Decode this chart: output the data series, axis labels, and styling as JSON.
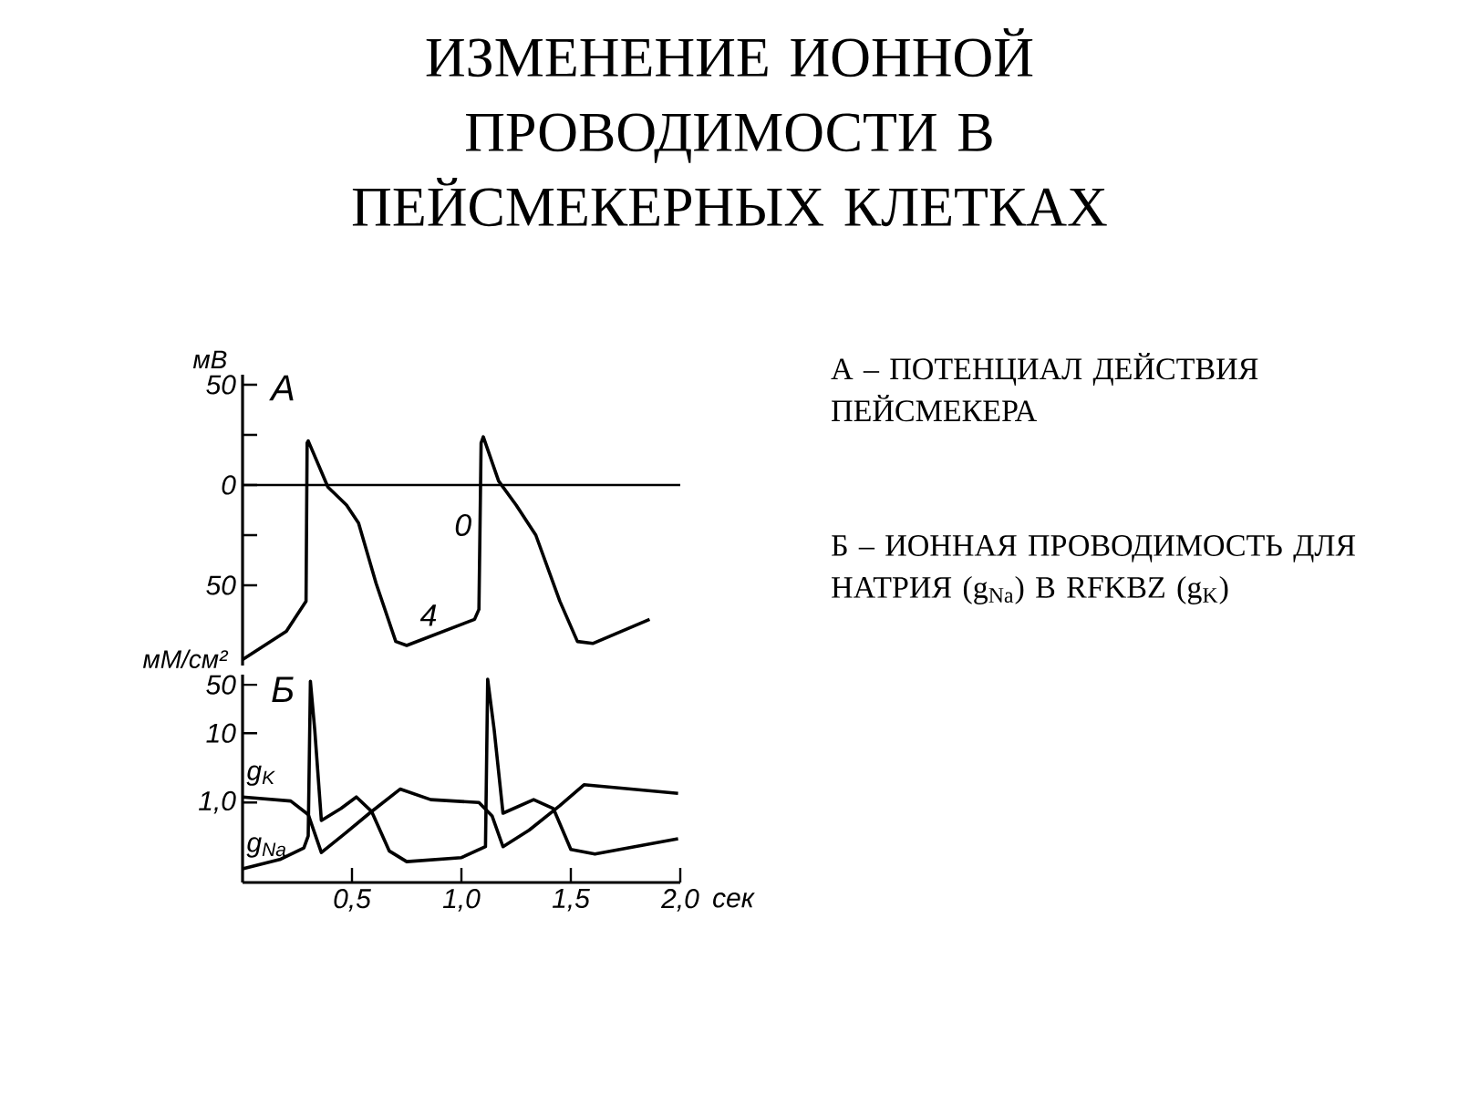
{
  "chart_data": [
    {
      "type": "line",
      "title": "ИЗМЕНЕНИЕ ИОННОЙ ПРОВОДИМОСТИ В ПЕЙСМЕКЕРНЫХ КЛЕТКАХ",
      "ylabel": "мВ",
      "xlim": [
        0,
        2.0
      ],
      "ylim": [
        -90,
        55
      ],
      "yticks": [
        50,
        {
          "value": 25,
          "label": null
        },
        0,
        {
          "value": -25,
          "label": null
        },
        {
          "value": -50,
          "label": "50"
        }
      ],
      "tick_labels": "y",
      "ref_lines": [
        {
          "axis": "y",
          "value": 0,
          "color": "#000000"
        }
      ],
      "annotations": [
        "А",
        {
          "text": "0",
          "x": 1.09,
          "y": -20
        },
        {
          "text": "4",
          "x": 0.85,
          "y": -75
        },
        "А – ПОТЕНЦИАЛ ДЕЙСТВИЯ ПЕЙСМЕКЕРА"
      ],
      "series": [
        {
          "color": "#000000",
          "x": [
            0.0,
            0.2,
            0.29,
            0.295,
            0.3,
            0.39,
            0.475,
            0.53,
            0.61,
            0.7,
            0.75,
            1.06,
            1.08,
            1.09,
            1.1,
            1.17,
            1.25,
            1.34,
            1.45,
            1.53,
            1.6,
            1.86
          ],
          "values": [
            -87,
            -73,
            -58,
            21,
            22,
            -1,
            -10,
            -19,
            -49,
            -78,
            -80,
            -67,
            -62,
            21,
            24,
            2,
            -10,
            -25,
            -58,
            -78,
            -79,
            -67
          ]
        }
      ]
    },
    {
      "type": "line",
      "ylabel": "мМ/см²",
      "xlabel": "сек",
      "log": "y",
      "xlim": [
        0,
        2.0
      ],
      "ylim": [
        0.07,
        70
      ],
      "xticks": [
        {
          "value": 0.5,
          "label": "0,5"
        },
        {
          "value": 1.0,
          "label": "1,0"
        },
        {
          "value": 1.5,
          "label": "1,5"
        },
        {
          "value": 2.0,
          "label": "2,0"
        }
      ],
      "yticks": [
        50,
        10,
        {
          "value": 1,
          "label": "1,0"
        }
      ],
      "annotations": [
        "Б",
        "Б – ИОННАЯ ПРОВОДИМОСТЬ ДЛЯ НАТРИЯ (g$_{Na}$) В RFKBZ (g$_{K}$)"
      ],
      "series": [
        {
          "name": "g$_{K}$",
          "color": "#000000",
          "x": [
            0.0,
            0.22,
            0.3,
            0.36,
            0.47,
            0.58,
            0.72,
            0.86,
            1.08,
            1.14,
            1.19,
            1.31,
            1.45,
            1.56,
            1.99
          ],
          "values": [
            1.2,
            1.05,
            0.67,
            0.19,
            0.36,
            0.7,
            1.56,
            1.1,
            1.0,
            0.64,
            0.23,
            0.4,
            0.9,
            1.8,
            1.35
          ]
        },
        {
          "name": "g$_{Na}$",
          "color": "#000000",
          "x": [
            0.0,
            0.17,
            0.28,
            0.3,
            0.31,
            0.33,
            0.36,
            0.45,
            0.52,
            0.59,
            0.67,
            0.75,
            1.0,
            1.11,
            1.12,
            1.15,
            1.19,
            1.33,
            1.42,
            1.5,
            1.61,
            1.99
          ],
          "values": [
            0.11,
            0.15,
            0.22,
            0.33,
            56,
            11,
            0.55,
            0.82,
            1.2,
            0.74,
            0.2,
            0.14,
            0.16,
            0.23,
            60,
            11,
            0.7,
            1.1,
            0.82,
            0.21,
            0.18,
            0.3
          ]
        }
      ]
    }
  ]
}
